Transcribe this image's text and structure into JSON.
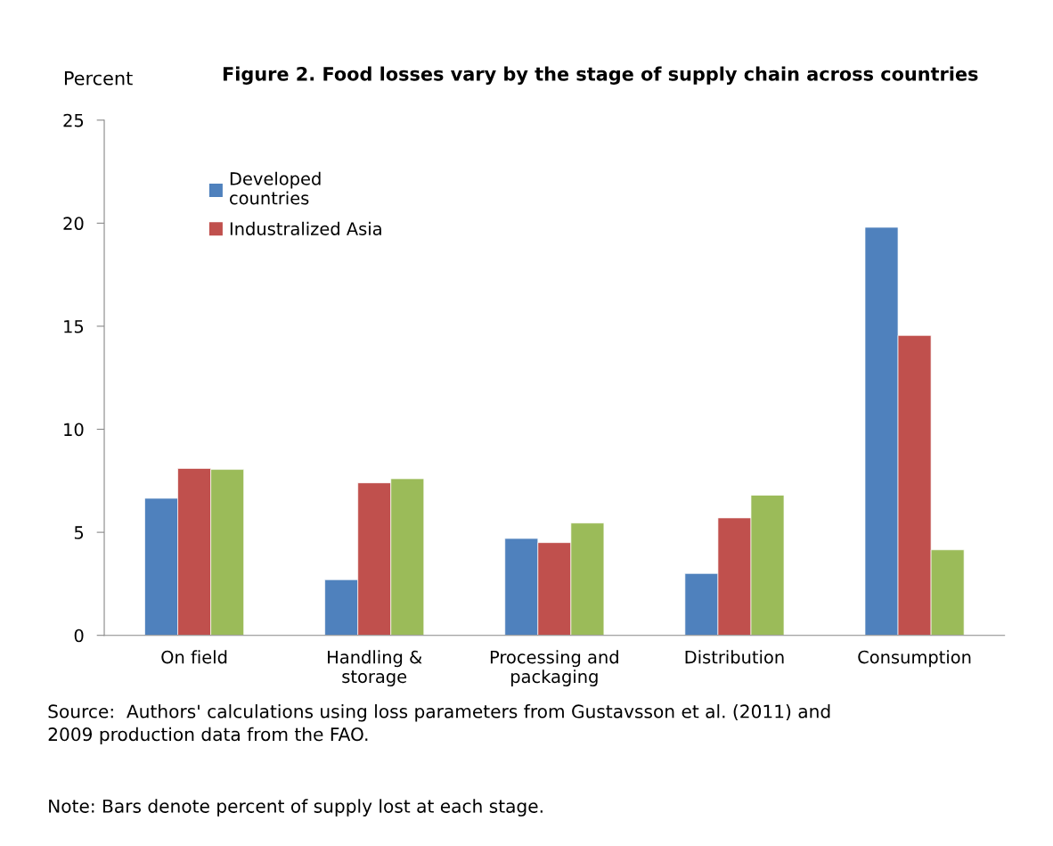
{
  "chart_data": {
    "type": "bar",
    "title": "Figure 2. Food losses vary by the stage of supply chain across countries",
    "ylabel": "Percent",
    "categories": [
      "On field",
      "Handling &\nstorage",
      "Processing and\npackaging",
      "Distribution",
      "Consumption"
    ],
    "series": [
      {
        "name": "Developed\ncountries",
        "color": "#4f81bd",
        "values": [
          6.65,
          2.7,
          4.7,
          3.0,
          19.8
        ]
      },
      {
        "name": "Industralized Asia",
        "color": "#c0504d",
        "values": [
          8.1,
          7.4,
          4.5,
          5.7,
          14.55
        ]
      },
      {
        "color": "#9bbb59",
        "values": [
          8.05,
          7.6,
          5.45,
          6.8,
          4.15
        ]
      }
    ],
    "ylim": [
      0,
      25
    ],
    "yticks": [
      0,
      5,
      10,
      15,
      20,
      25
    ],
    "grid": false,
    "legend": "top left",
    "annotations": [
      "Source:  Authors' calculations using loss parameters from Gustavsson et al. (2011) and\n2009 production data from the FAO.",
      "Note: Bars denote percent of supply lost at each stage."
    ]
  }
}
